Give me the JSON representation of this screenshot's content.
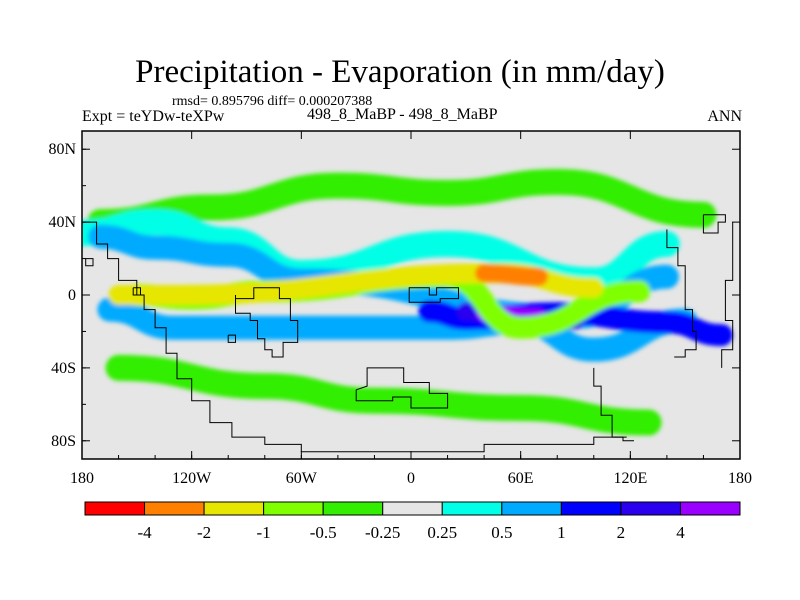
{
  "chart_data": {
    "type": "heatmap",
    "title": "Precipitation - Evaporation (in mm/day)",
    "stats_line": "rmsd= 0.895796 diff= 0.000207388",
    "left_subtitle": "Expt = teYDw-teXPw",
    "center_subtitle": "498_8_MaBP - 498_8_MaBP",
    "right_subtitle": "ANN",
    "x_axis": {
      "range": [
        -180,
        180
      ],
      "ticks": [
        -180,
        -120,
        -60,
        0,
        60,
        120,
        180
      ],
      "tick_labels": [
        "180",
        "120W",
        "60W",
        "0",
        "60E",
        "120E",
        "180"
      ]
    },
    "y_axis": {
      "range": [
        -90,
        90
      ],
      "ticks": [
        80,
        40,
        0,
        -40,
        -80
      ],
      "tick_labels": [
        "80N",
        "40N",
        "0",
        "40S",
        "80S"
      ]
    },
    "colorbar": {
      "boundaries": [
        -4,
        -2,
        -1,
        -0.5,
        -0.25,
        0.25,
        0.5,
        1,
        2,
        4
      ],
      "labels": [
        "-4",
        "-2",
        "-1",
        "-0.5",
        "-0.25",
        "0.25",
        "0.5",
        "1",
        "2",
        "4"
      ],
      "colors": [
        "#ff0000",
        "#ff8000",
        "#e6e600",
        "#80ff00",
        "#33ee00",
        "#e6e6e6",
        "#00ffe6",
        "#00aaff",
        "#0000ff",
        "#2a00ee",
        "#9900ff"
      ]
    },
    "background_color": "#e6e6e6",
    "features": [
      {
        "level": 4,
        "lon": [
          -170,
          -110,
          -40,
          20,
          80,
          160
        ],
        "lat": [
          40,
          48,
          60,
          56,
          62,
          44
        ]
      },
      {
        "level": 6,
        "lon": [
          -180,
          -140,
          -100,
          -60,
          20,
          100,
          140
        ],
        "lat": [
          34,
          40,
          30,
          12,
          28,
          8,
          28
        ]
      },
      {
        "level": 7,
        "lon": [
          -170,
          -140,
          -100,
          -60,
          90,
          140
        ],
        "lat": [
          32,
          26,
          22,
          8,
          -12,
          10
        ]
      },
      {
        "level": 7,
        "lon": [
          -165,
          -130,
          20,
          60,
          100,
          150
        ],
        "lat": [
          -8,
          -18,
          -18,
          -15,
          -30,
          -14
        ]
      },
      {
        "level": 8,
        "lon": [
          10,
          30,
          80,
          140,
          170
        ],
        "lat": [
          -9,
          -13,
          -10,
          -15,
          -22
        ]
      },
      {
        "level": 9,
        "lon": [
          30,
          60,
          90
        ],
        "lat": [
          -9,
          -12,
          -14
        ]
      },
      {
        "level": 10,
        "lon": [
          40,
          70
        ],
        "lat": [
          -10,
          -12
        ]
      },
      {
        "level": 4,
        "lon": [
          -160,
          -80,
          -20,
          60,
          130
        ],
        "lat": [
          -40,
          -50,
          -58,
          -62,
          -70
        ]
      },
      {
        "level": 3,
        "lon": [
          -150,
          -120,
          -80,
          20,
          60,
          125
        ],
        "lat": [
          0,
          -2,
          2,
          10,
          -18,
          2
        ]
      },
      {
        "level": 2,
        "lon": [
          -160,
          -130,
          50,
          100
        ],
        "lat": [
          0,
          0,
          12,
          4
        ]
      },
      {
        "level": 1,
        "lon": [
          40,
          70
        ],
        "lat": [
          12,
          10
        ]
      }
    ]
  }
}
